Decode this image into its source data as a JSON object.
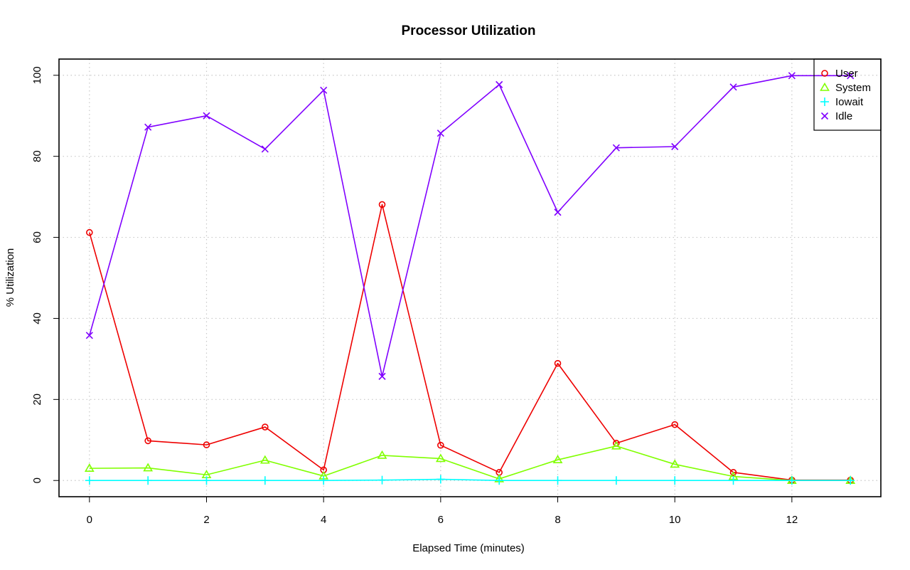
{
  "chart_data": {
    "type": "line",
    "title": "Processor Utilization",
    "xlabel": "Elapsed Time (minutes)",
    "ylabel": "% Utilization",
    "x": [
      0,
      1,
      2,
      3,
      4,
      5,
      6,
      7,
      8,
      9,
      10,
      11,
      12,
      13
    ],
    "xlim": [
      -0.52,
      13.52
    ],
    "ylim": [
      -4,
      104
    ],
    "x_ticks": [
      0,
      2,
      4,
      6,
      8,
      10,
      12
    ],
    "y_ticks": [
      0,
      20,
      40,
      60,
      80,
      100
    ],
    "grid": true,
    "legend_position": "top-right",
    "series": [
      {
        "name": "User",
        "color": "#ee0000",
        "marker": "circle",
        "values": [
          61.2,
          9.8,
          8.8,
          13.2,
          2.6,
          68.1,
          8.7,
          2.0,
          28.9,
          9.2,
          13.8,
          2.0,
          0.1,
          0.1
        ]
      },
      {
        "name": "System",
        "color": "#80ff00",
        "marker": "triangle",
        "values": [
          3.0,
          3.1,
          1.4,
          5.0,
          1.1,
          6.2,
          5.4,
          0.4,
          5.1,
          8.5,
          4.0,
          1.0,
          0.0,
          0.0
        ]
      },
      {
        "name": "Iowait",
        "color": "#00ffff",
        "marker": "plus",
        "values": [
          0.0,
          0.0,
          0.0,
          0.0,
          0.0,
          0.1,
          0.3,
          0.0,
          0.0,
          0.0,
          0.0,
          0.0,
          0.0,
          0.0
        ]
      },
      {
        "name": "Idle",
        "color": "#8000ff",
        "marker": "cross",
        "values": [
          35.8,
          87.2,
          90.0,
          81.8,
          96.3,
          25.7,
          85.7,
          97.7,
          66.2,
          82.1,
          82.4,
          97.1,
          99.9,
          99.9
        ]
      }
    ]
  }
}
